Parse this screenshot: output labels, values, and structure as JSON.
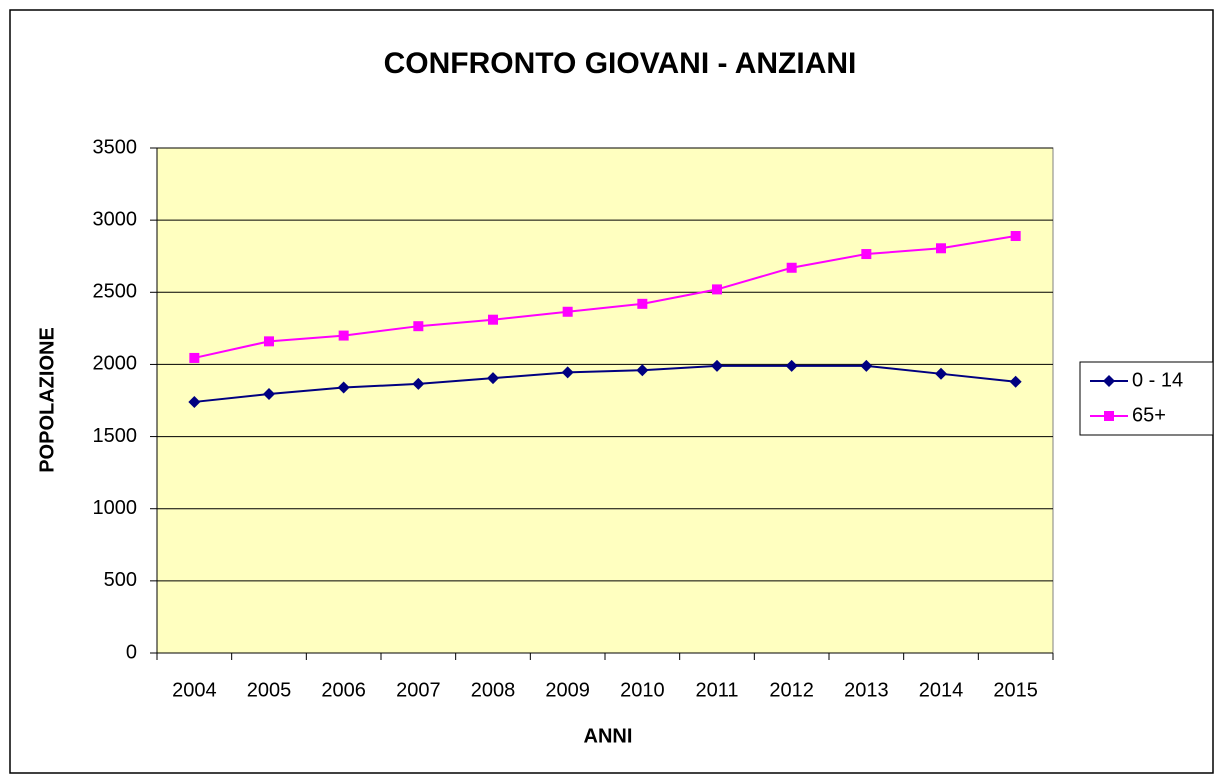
{
  "chart_data": {
    "type": "line",
    "title": "CONFRONTO GIOVANI - ANZIANI",
    "x_label": "ANNI",
    "y_label": "POPOLAZIONE",
    "categories": [
      "2004",
      "2005",
      "2006",
      "2007",
      "2008",
      "2009",
      "2010",
      "2011",
      "2012",
      "2013",
      "2014",
      "2015"
    ],
    "series": [
      {
        "name": "0 - 14",
        "color": "#000080",
        "marker": "diamond",
        "values": [
          1740,
          1795,
          1840,
          1865,
          1905,
          1945,
          1960,
          1990,
          1990,
          1990,
          1935,
          1880
        ]
      },
      {
        "name": "65+",
        "color": "#ff00ff",
        "marker": "square",
        "values": [
          2045,
          2160,
          2200,
          2265,
          2310,
          2365,
          2420,
          2520,
          2670,
          2765,
          2805,
          2890
        ]
      }
    ],
    "ylim": [
      0,
      3500
    ],
    "yticks": [
      0,
      500,
      1000,
      1500,
      2000,
      2500,
      3000,
      3500
    ],
    "grid": true,
    "legend": "right",
    "plot_background": "#ffffc0"
  }
}
